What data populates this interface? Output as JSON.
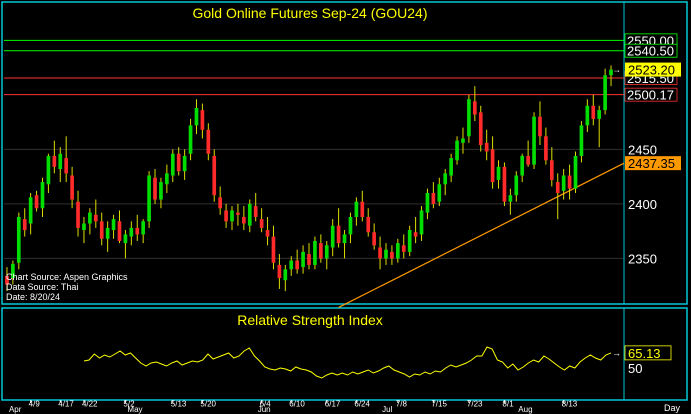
{
  "colors": {
    "background": "#000000",
    "frame": "#00c8d8",
    "title": "#ffff00",
    "candle_up": "#00dd00",
    "candle_down": "#ff2a2a",
    "wick": "#dddd00",
    "trendline": "#ff9900",
    "green_line": "#00ff00",
    "red_line": "#ff3333",
    "rsi_line": "#ffff00",
    "grid": "#303030",
    "axis_text": "#ffffff"
  },
  "chart_data": [
    {
      "type": "candlestick",
      "title": "Gold Online Futures Sep-24 (GOU24)",
      "notes": [
        "Chart Source: Aspen Graphics",
        "Data Source: Thai",
        "Date: 8/20/24"
      ],
      "x_tick_labels": [
        "4/9",
        "4/17",
        "4/22",
        "5/2",
        "5/13",
        "5/20",
        "6/4",
        "6/10",
        "6/17",
        "6/24",
        "7/8",
        "7/15",
        "7/23",
        "8/1",
        "8/13"
      ],
      "month_labels": [
        "Apr",
        "May",
        "Jun",
        "Jul",
        "Aug"
      ],
      "x_axis_unit": "Day",
      "y_ticks": [
        2350,
        2400,
        2450
      ],
      "ylim": [
        2310,
        2565
      ],
      "horizontal_lines": [
        {
          "label": "2550.00",
          "value": 2550,
          "color": "#00ff00"
        },
        {
          "label": "2540.50",
          "value": 2540.5,
          "color": "#00ff00"
        },
        {
          "label": "2515.50",
          "value": 2515.5,
          "color": "#ff3333"
        },
        {
          "label": "2500.17",
          "value": 2500.17,
          "color": "#ff3333"
        }
      ],
      "last_price": {
        "label": "2523.20",
        "value": 2523.2
      },
      "trendline": {
        "label": "2437.35",
        "value": 2437.35,
        "start_value": 2305
      },
      "ohlc": [
        [
          2334,
          2342,
          2320,
          2326
        ],
        [
          2332,
          2348,
          2326,
          2345
        ],
        [
          2346,
          2392,
          2340,
          2388
        ],
        [
          2386,
          2396,
          2370,
          2376
        ],
        [
          2382,
          2410,
          2372,
          2406
        ],
        [
          2408,
          2412,
          2393,
          2396
        ],
        [
          2396,
          2424,
          2388,
          2420
        ],
        [
          2418,
          2446,
          2410,
          2444
        ],
        [
          2444,
          2458,
          2428,
          2434
        ],
        [
          2432,
          2452,
          2420,
          2446
        ],
        [
          2442,
          2462,
          2420,
          2428
        ],
        [
          2426,
          2434,
          2396,
          2404
        ],
        [
          2402,
          2412,
          2370,
          2378
        ],
        [
          2376,
          2388,
          2364,
          2382
        ],
        [
          2382,
          2396,
          2372,
          2392
        ],
        [
          2390,
          2404,
          2378,
          2384
        ],
        [
          2384,
          2392,
          2362,
          2368
        ],
        [
          2368,
          2384,
          2356,
          2378
        ],
        [
          2376,
          2390,
          2368,
          2386
        ],
        [
          2384,
          2394,
          2364,
          2366
        ],
        [
          2364,
          2376,
          2350,
          2372
        ],
        [
          2370,
          2384,
          2362,
          2378
        ],
        [
          2378,
          2390,
          2366,
          2372
        ],
        [
          2372,
          2386,
          2364,
          2384
        ],
        [
          2384,
          2430,
          2378,
          2426
        ],
        [
          2424,
          2432,
          2400,
          2404
        ],
        [
          2404,
          2424,
          2396,
          2420
        ],
        [
          2418,
          2436,
          2410,
          2428
        ],
        [
          2426,
          2450,
          2420,
          2446
        ],
        [
          2446,
          2452,
          2426,
          2430
        ],
        [
          2430,
          2450,
          2422,
          2444
        ],
        [
          2446,
          2478,
          2440,
          2472
        ],
        [
          2472,
          2496,
          2464,
          2488
        ],
        [
          2486,
          2492,
          2460,
          2468
        ],
        [
          2468,
          2474,
          2440,
          2446
        ],
        [
          2444,
          2450,
          2402,
          2408
        ],
        [
          2406,
          2416,
          2390,
          2396
        ],
        [
          2394,
          2400,
          2378,
          2384
        ],
        [
          2384,
          2398,
          2376,
          2394
        ],
        [
          2392,
          2400,
          2380,
          2390
        ],
        [
          2388,
          2398,
          2376,
          2382
        ],
        [
          2380,
          2404,
          2374,
          2400
        ],
        [
          2398,
          2410,
          2384,
          2388
        ],
        [
          2386,
          2396,
          2374,
          2378
        ],
        [
          2376,
          2388,
          2362,
          2370
        ],
        [
          2370,
          2380,
          2340,
          2346
        ],
        [
          2344,
          2354,
          2322,
          2332
        ],
        [
          2330,
          2344,
          2320,
          2340
        ],
        [
          2340,
          2352,
          2334,
          2348
        ],
        [
          2348,
          2358,
          2336,
          2340
        ],
        [
          2342,
          2362,
          2336,
          2356
        ],
        [
          2354,
          2364,
          2340,
          2344
        ],
        [
          2344,
          2370,
          2340,
          2366
        ],
        [
          2364,
          2372,
          2346,
          2350
        ],
        [
          2350,
          2366,
          2340,
          2362
        ],
        [
          2360,
          2386,
          2352,
          2380
        ],
        [
          2380,
          2396,
          2360,
          2364
        ],
        [
          2364,
          2376,
          2350,
          2372
        ],
        [
          2372,
          2392,
          2364,
          2388
        ],
        [
          2388,
          2406,
          2380,
          2402
        ],
        [
          2402,
          2412,
          2384,
          2388
        ],
        [
          2388,
          2396,
          2370,
          2374
        ],
        [
          2374,
          2382,
          2358,
          2362
        ],
        [
          2360,
          2370,
          2340,
          2350
        ],
        [
          2350,
          2364,
          2344,
          2358
        ],
        [
          2356,
          2362,
          2344,
          2350
        ],
        [
          2350,
          2368,
          2346,
          2364
        ],
        [
          2362,
          2372,
          2350,
          2356
        ],
        [
          2356,
          2380,
          2352,
          2376
        ],
        [
          2374,
          2388,
          2364,
          2370
        ],
        [
          2372,
          2398,
          2366,
          2394
        ],
        [
          2392,
          2414,
          2386,
          2410
        ],
        [
          2410,
          2420,
          2396,
          2400
        ],
        [
          2402,
          2424,
          2398,
          2418
        ],
        [
          2418,
          2432,
          2408,
          2428
        ],
        [
          2426,
          2446,
          2420,
          2442
        ],
        [
          2440,
          2462,
          2436,
          2458
        ],
        [
          2456,
          2470,
          2446,
          2460
        ],
        [
          2462,
          2500,
          2456,
          2496
        ],
        [
          2494,
          2508,
          2476,
          2482
        ],
        [
          2484,
          2490,
          2448,
          2454
        ],
        [
          2456,
          2468,
          2440,
          2448
        ],
        [
          2450,
          2462,
          2414,
          2420
        ],
        [
          2422,
          2440,
          2414,
          2434
        ],
        [
          2434,
          2438,
          2398,
          2402
        ],
        [
          2402,
          2414,
          2390,
          2408
        ],
        [
          2408,
          2430,
          2402,
          2426
        ],
        [
          2426,
          2446,
          2420,
          2444
        ],
        [
          2444,
          2458,
          2434,
          2436
        ],
        [
          2436,
          2484,
          2432,
          2480
        ],
        [
          2480,
          2494,
          2454,
          2462
        ],
        [
          2462,
          2470,
          2436,
          2440
        ],
        [
          2440,
          2452,
          2416,
          2422
        ],
        [
          2420,
          2428,
          2386,
          2410
        ],
        [
          2412,
          2432,
          2404,
          2426
        ],
        [
          2426,
          2436,
          2404,
          2414
        ],
        [
          2414,
          2448,
          2410,
          2444
        ],
        [
          2444,
          2476,
          2438,
          2472
        ],
        [
          2472,
          2496,
          2466,
          2490
        ],
        [
          2490,
          2500,
          2472,
          2478
        ],
        [
          2478,
          2490,
          2452,
          2486
        ],
        [
          2486,
          2524,
          2482,
          2518
        ],
        [
          2518,
          2527,
          2508,
          2523.2
        ]
      ]
    },
    {
      "type": "line",
      "title": "Relative Strength Index",
      "y_ticks": [
        50
      ],
      "ylim": [
        20,
        88
      ],
      "last_value": {
        "label": "65.13",
        "value": 65.13
      },
      "values": [
        57,
        58,
        64,
        60,
        63,
        61,
        64,
        67,
        63,
        65,
        60,
        55,
        52,
        55,
        56,
        54,
        52,
        55,
        57,
        53,
        55,
        57,
        56,
        58,
        64,
        59,
        61,
        63,
        65,
        60,
        62,
        67,
        70,
        62,
        57,
        51,
        49,
        48,
        50,
        49,
        47,
        51,
        49,
        48,
        46,
        42,
        40,
        43,
        45,
        43,
        45,
        43,
        46,
        44,
        46,
        48,
        45,
        47,
        50,
        52,
        48,
        46,
        44,
        41,
        44,
        43,
        46,
        44,
        47,
        46,
        50,
        53,
        51,
        53,
        55,
        58,
        62,
        62,
        71,
        69,
        58,
        56,
        50,
        54,
        48,
        51,
        55,
        58,
        56,
        62,
        59,
        55,
        51,
        48,
        52,
        50,
        56,
        60,
        63,
        60,
        58,
        63,
        65.13
      ]
    }
  ]
}
